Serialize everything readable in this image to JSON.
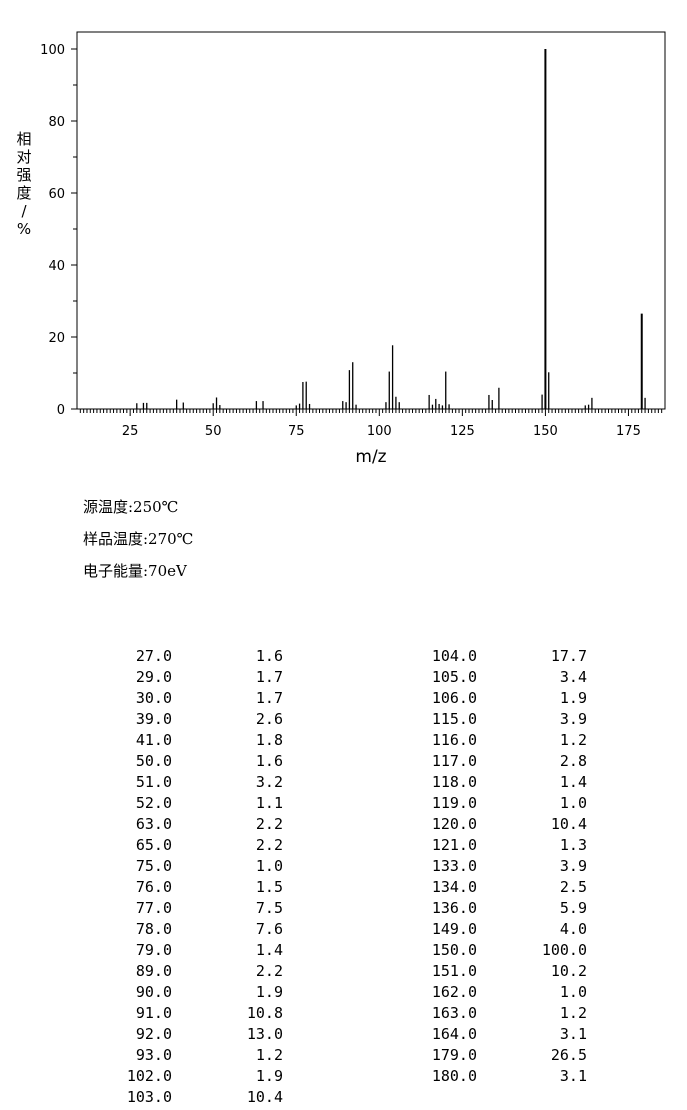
{
  "chart_data": {
    "type": "bar",
    "title": "",
    "xlabel": "m/z",
    "ylabel": "相对强度/%",
    "xlim": [
      9,
      186
    ],
    "ylim": [
      0,
      100
    ],
    "xticks": [
      25,
      50,
      75,
      100,
      125,
      150,
      175
    ],
    "yticks": [
      0,
      20,
      40,
      60,
      80,
      100
    ],
    "grid": false,
    "peaks": [
      [
        27.0,
        1.6
      ],
      [
        29.0,
        1.7
      ],
      [
        30.0,
        1.7
      ],
      [
        39.0,
        2.6
      ],
      [
        41.0,
        1.8
      ],
      [
        50.0,
        1.6
      ],
      [
        51.0,
        3.2
      ],
      [
        52.0,
        1.1
      ],
      [
        63.0,
        2.2
      ],
      [
        65.0,
        2.2
      ],
      [
        75.0,
        1.0
      ],
      [
        76.0,
        1.5
      ],
      [
        77.0,
        7.5
      ],
      [
        78.0,
        7.6
      ],
      [
        79.0,
        1.4
      ],
      [
        89.0,
        2.2
      ],
      [
        90.0,
        1.9
      ],
      [
        91.0,
        10.8
      ],
      [
        92.0,
        13.0
      ],
      [
        93.0,
        1.2
      ],
      [
        102.0,
        1.9
      ],
      [
        103.0,
        10.4
      ],
      [
        104.0,
        17.7
      ],
      [
        105.0,
        3.4
      ],
      [
        106.0,
        1.9
      ],
      [
        115.0,
        3.9
      ],
      [
        116.0,
        1.2
      ],
      [
        117.0,
        2.8
      ],
      [
        118.0,
        1.4
      ],
      [
        119.0,
        1.0
      ],
      [
        120.0,
        10.4
      ],
      [
        121.0,
        1.3
      ],
      [
        133.0,
        3.9
      ],
      [
        134.0,
        2.5
      ],
      [
        136.0,
        5.9
      ],
      [
        149.0,
        4.0
      ],
      [
        150.0,
        100.0
      ],
      [
        151.0,
        10.2
      ],
      [
        162.0,
        1.0
      ],
      [
        163.0,
        1.2
      ],
      [
        164.0,
        3.1
      ],
      [
        179.0,
        26.5
      ],
      [
        180.0,
        3.1
      ]
    ]
  },
  "conditions": [
    "源温度:250℃",
    "样品温度:270℃",
    "电子能量:70eV"
  ],
  "peak_table": {
    "left": [
      [
        "27.0",
        "1.6"
      ],
      [
        "29.0",
        "1.7"
      ],
      [
        "30.0",
        "1.7"
      ],
      [
        "39.0",
        "2.6"
      ],
      [
        "41.0",
        "1.8"
      ],
      [
        "50.0",
        "1.6"
      ],
      [
        "51.0",
        "3.2"
      ],
      [
        "52.0",
        "1.1"
      ],
      [
        "63.0",
        "2.2"
      ],
      [
        "65.0",
        "2.2"
      ],
      [
        "75.0",
        "1.0"
      ],
      [
        "76.0",
        "1.5"
      ],
      [
        "77.0",
        "7.5"
      ],
      [
        "78.0",
        "7.6"
      ],
      [
        "79.0",
        "1.4"
      ],
      [
        "89.0",
        "2.2"
      ],
      [
        "90.0",
        "1.9"
      ],
      [
        "91.0",
        "10.8"
      ],
      [
        "92.0",
        "13.0"
      ],
      [
        "93.0",
        "1.2"
      ],
      [
        "102.0",
        "1.9"
      ],
      [
        "103.0",
        "10.4"
      ]
    ],
    "right": [
      [
        "104.0",
        "17.7"
      ],
      [
        "105.0",
        "3.4"
      ],
      [
        "106.0",
        "1.9"
      ],
      [
        "115.0",
        "3.9"
      ],
      [
        "116.0",
        "1.2"
      ],
      [
        "117.0",
        "2.8"
      ],
      [
        "118.0",
        "1.4"
      ],
      [
        "119.0",
        "1.0"
      ],
      [
        "120.0",
        "10.4"
      ],
      [
        "121.0",
        "1.3"
      ],
      [
        "133.0",
        "3.9"
      ],
      [
        "134.0",
        "2.5"
      ],
      [
        "136.0",
        "5.9"
      ],
      [
        "149.0",
        "4.0"
      ],
      [
        "150.0",
        "100.0"
      ],
      [
        "151.0",
        "10.2"
      ],
      [
        "162.0",
        "1.0"
      ],
      [
        "163.0",
        "1.2"
      ],
      [
        "164.0",
        "3.1"
      ],
      [
        "179.0",
        "26.5"
      ],
      [
        "180.0",
        "3.1"
      ]
    ]
  }
}
